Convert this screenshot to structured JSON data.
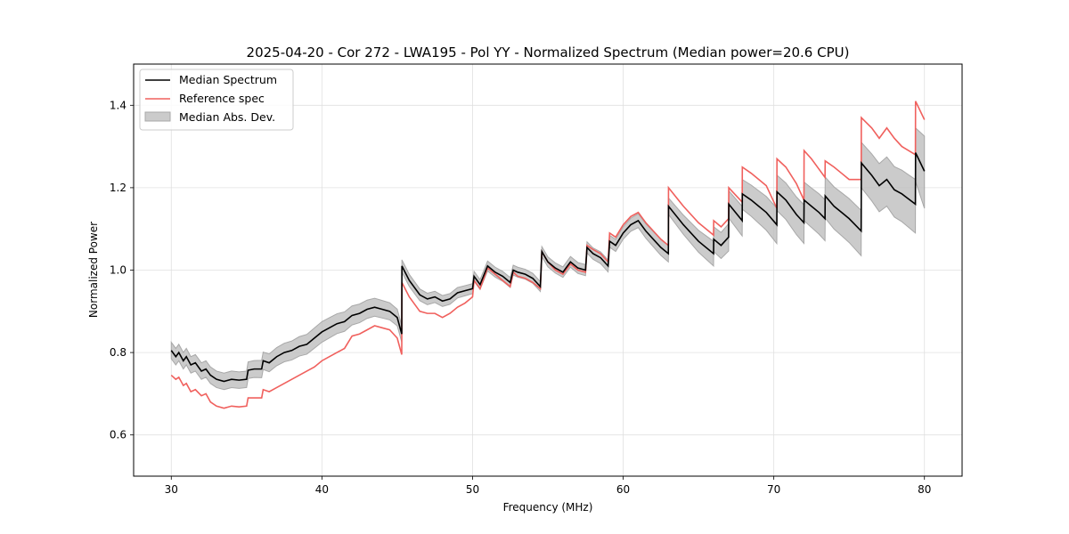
{
  "chart_data": {
    "type": "line",
    "title": "2025-04-20 - Cor 272 - LWA195 - Pol YY - Normalized Spectrum (Median power=20.6 CPU)",
    "xlabel": "Frequency (MHz)",
    "ylabel": "Normalized Power",
    "xlim": [
      27.5,
      82.5
    ],
    "ylim": [
      0.5,
      1.5
    ],
    "xticks": [
      30,
      40,
      50,
      60,
      70,
      80
    ],
    "xtick_labels": [
      "30",
      "40",
      "50",
      "60",
      "70",
      "80"
    ],
    "yticks": [
      0.6,
      0.8,
      1.0,
      1.2,
      1.4
    ],
    "ytick_labels": [
      "0.6",
      "0.8",
      "1.0",
      "1.2",
      "1.4"
    ],
    "grid": true,
    "legend_position": "top-left",
    "legend": [
      {
        "label": "Median Spectrum",
        "type": "line",
        "color": "#000000"
      },
      {
        "label": "Reference spec",
        "type": "line",
        "color": "#f0605d"
      },
      {
        "label": "Median Abs. Dev.",
        "type": "fill",
        "color": "#bdbdbd"
      }
    ],
    "series": [
      {
        "name": "Median Spectrum",
        "color": "#000000",
        "x": [
          30.0,
          30.3,
          30.5,
          30.8,
          31.0,
          31.3,
          31.6,
          32.0,
          32.3,
          32.6,
          33.0,
          33.5,
          34.0,
          34.5,
          35.0,
          35.1,
          35.5,
          36.0,
          36.1,
          36.5,
          37.0,
          37.5,
          38.0,
          38.5,
          39.0,
          39.5,
          40.0,
          40.5,
          41.0,
          41.5,
          42.0,
          42.5,
          43.0,
          43.5,
          44.0,
          44.5,
          45.0,
          45.3,
          45.31,
          45.8,
          46.5,
          47.0,
          47.5,
          48.0,
          48.5,
          49.0,
          49.5,
          50.0,
          50.1,
          50.5,
          51.0,
          51.5,
          52.0,
          52.5,
          52.7,
          53.0,
          53.5,
          54.0,
          54.5,
          54.6,
          55.0,
          55.5,
          56.0,
          56.5,
          57.0,
          57.5,
          57.6,
          58.0,
          58.5,
          59.0,
          59.1,
          59.5,
          60.0,
          60.5,
          61.0,
          61.5,
          62.0,
          62.5,
          63.0,
          63.01,
          64.0,
          65.0,
          66.0,
          66.01,
          66.5,
          67.0,
          67.01,
          67.9,
          67.91,
          68.5,
          69.0,
          69.5,
          70.2,
          70.21,
          70.8,
          71.5,
          72.0,
          72.01,
          72.5,
          73.0,
          73.4,
          73.41,
          74.0,
          74.5,
          75.0,
          75.8,
          75.81,
          76.5,
          77.0,
          77.5,
          78.0,
          78.5,
          79.4,
          79.41,
          80.0
        ],
        "values": [
          0.805,
          0.79,
          0.8,
          0.78,
          0.79,
          0.77,
          0.775,
          0.755,
          0.76,
          0.745,
          0.735,
          0.73,
          0.735,
          0.733,
          0.735,
          0.757,
          0.76,
          0.76,
          0.78,
          0.775,
          0.79,
          0.8,
          0.805,
          0.815,
          0.82,
          0.835,
          0.85,
          0.86,
          0.87,
          0.875,
          0.89,
          0.895,
          0.905,
          0.91,
          0.905,
          0.9,
          0.885,
          0.845,
          1.01,
          0.975,
          0.94,
          0.93,
          0.935,
          0.925,
          0.93,
          0.945,
          0.95,
          0.955,
          0.985,
          0.965,
          1.01,
          0.995,
          0.985,
          0.97,
          1.0,
          0.995,
          0.99,
          0.98,
          0.96,
          1.045,
          1.02,
          1.005,
          0.995,
          1.02,
          1.005,
          1.0,
          1.055,
          1.04,
          1.03,
          1.01,
          1.07,
          1.06,
          1.09,
          1.11,
          1.12,
          1.095,
          1.075,
          1.055,
          1.04,
          1.155,
          1.11,
          1.07,
          1.04,
          1.075,
          1.06,
          1.08,
          1.16,
          1.12,
          1.185,
          1.17,
          1.155,
          1.14,
          1.11,
          1.19,
          1.17,
          1.135,
          1.115,
          1.17,
          1.155,
          1.14,
          1.125,
          1.18,
          1.155,
          1.14,
          1.125,
          1.095,
          1.26,
          1.23,
          1.205,
          1.22,
          1.195,
          1.185,
          1.16,
          1.285,
          1.24
        ]
      },
      {
        "name": "Reference spec",
        "color": "#f0605d",
        "x": [
          30.0,
          30.3,
          30.5,
          30.8,
          31.0,
          31.3,
          31.6,
          32.0,
          32.3,
          32.6,
          33.0,
          33.5,
          34.0,
          34.5,
          35.0,
          35.1,
          35.5,
          36.0,
          36.1,
          36.5,
          37.0,
          37.5,
          38.0,
          38.5,
          39.0,
          39.5,
          40.0,
          40.5,
          41.0,
          41.5,
          42.0,
          42.5,
          43.0,
          43.5,
          44.0,
          44.5,
          45.0,
          45.3,
          45.31,
          45.8,
          46.5,
          47.0,
          47.5,
          48.0,
          48.5,
          49.0,
          49.5,
          50.0,
          50.1,
          50.5,
          51.0,
          51.5,
          52.0,
          52.5,
          52.7,
          53.0,
          53.5,
          54.0,
          54.5,
          54.6,
          55.0,
          55.5,
          56.0,
          56.5,
          57.0,
          57.5,
          57.6,
          58.0,
          58.5,
          59.0,
          59.1,
          59.5,
          60.0,
          60.5,
          61.0,
          61.5,
          62.0,
          62.5,
          63.0,
          63.01,
          64.0,
          65.0,
          66.0,
          66.01,
          66.5,
          67.0,
          67.01,
          67.9,
          67.91,
          68.5,
          69.0,
          69.5,
          70.2,
          70.21,
          70.8,
          71.5,
          72.0,
          72.01,
          72.5,
          73.0,
          73.4,
          73.41,
          74.0,
          74.5,
          75.0,
          75.8,
          75.81,
          76.5,
          77.0,
          77.5,
          78.0,
          78.5,
          79.4,
          79.41,
          80.0
        ],
        "values": [
          0.745,
          0.735,
          0.74,
          0.72,
          0.725,
          0.705,
          0.71,
          0.695,
          0.7,
          0.68,
          0.67,
          0.665,
          0.67,
          0.668,
          0.67,
          0.69,
          0.69,
          0.69,
          0.71,
          0.705,
          0.715,
          0.725,
          0.735,
          0.745,
          0.755,
          0.765,
          0.78,
          0.79,
          0.8,
          0.81,
          0.84,
          0.845,
          0.855,
          0.865,
          0.86,
          0.855,
          0.835,
          0.795,
          0.97,
          0.935,
          0.9,
          0.895,
          0.895,
          0.885,
          0.895,
          0.91,
          0.92,
          0.935,
          0.975,
          0.955,
          1.005,
          0.99,
          0.975,
          0.96,
          0.995,
          0.985,
          0.98,
          0.97,
          0.955,
          1.045,
          1.02,
          1.0,
          0.99,
          1.015,
          1.0,
          0.995,
          1.06,
          1.05,
          1.04,
          1.02,
          1.09,
          1.08,
          1.11,
          1.13,
          1.14,
          1.115,
          1.095,
          1.075,
          1.06,
          1.2,
          1.155,
          1.115,
          1.085,
          1.12,
          1.105,
          1.125,
          1.2,
          1.165,
          1.25,
          1.235,
          1.22,
          1.205,
          1.15,
          1.27,
          1.25,
          1.21,
          1.17,
          1.29,
          1.27,
          1.245,
          1.225,
          1.265,
          1.25,
          1.235,
          1.22,
          1.22,
          1.37,
          1.345,
          1.32,
          1.345,
          1.32,
          1.3,
          1.28,
          1.41,
          1.365
        ]
      },
      {
        "name": "Median Abs. Dev.",
        "type": "band",
        "color": "#bdbdbd",
        "note": "band = median ± mad",
        "x": [
          30.0,
          35.0,
          40.0,
          45.3,
          45.31,
          50.0,
          55.0,
          60.0,
          63.0,
          63.01,
          66.0,
          70.0,
          75.8,
          75.81,
          79.4,
          79.41,
          80.0
        ],
        "mad_upper": [
          0.02,
          0.02,
          0.025,
          0.02,
          0.015,
          0.012,
          0.012,
          0.015,
          0.02,
          0.02,
          0.03,
          0.04,
          0.05,
          0.05,
          0.06,
          0.06,
          0.085
        ],
        "mad_lower": [
          0.02,
          0.02,
          0.025,
          0.02,
          0.015,
          0.012,
          0.012,
          0.015,
          0.02,
          0.02,
          0.03,
          0.045,
          0.06,
          0.06,
          0.07,
          0.07,
          0.09
        ]
      }
    ]
  }
}
